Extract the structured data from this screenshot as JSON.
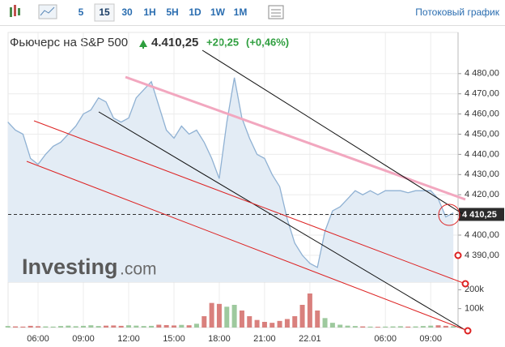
{
  "toolbar": {
    "intervals": [
      "5",
      "15",
      "30",
      "1H",
      "5H",
      "1D",
      "1W",
      "1M"
    ],
    "active_index": 1,
    "streaming_link": "Потоковый график"
  },
  "header": {
    "name": "Фьючерс на S&P 500",
    "price": "4.410,25",
    "change": "+20,25",
    "change_percent": "(+0,46%)"
  },
  "watermark": {
    "brand": "Investing",
    "suffix": ".com"
  },
  "chart_data": {
    "type": "area",
    "categories": [
      null,
      null,
      null,
      null,
      "06:00",
      null,
      null,
      null,
      null,
      null,
      "09:00",
      null,
      null,
      null,
      null,
      null,
      "12:00",
      null,
      null,
      null,
      null,
      null,
      "15:00",
      null,
      null,
      null,
      null,
      null,
      "18:00",
      null,
      null,
      null,
      null,
      null,
      "21:00",
      null,
      null,
      null,
      null,
      null,
      "22.01",
      null,
      null,
      null,
      null,
      null,
      null,
      null,
      null,
      null,
      "06:00",
      null,
      null,
      null,
      null,
      null,
      "09:00",
      null,
      null,
      null
    ],
    "series": [
      {
        "color": "#8fb1d3",
        "fill": "#e3ecf5",
        "values": [
          4456,
          4452,
          4450,
          4438,
          4435,
          4440,
          4444,
          4446,
          4450,
          4454,
          4460,
          4462,
          4468,
          4466,
          4458,
          4456,
          4458,
          4468,
          4472,
          4476,
          4464,
          4452,
          4448,
          4454,
          4450,
          4452,
          4446,
          4438,
          4428,
          4456,
          4478,
          4458,
          4448,
          4440,
          4438,
          4430,
          4424,
          4408,
          4396,
          4390,
          4386,
          4384,
          4402,
          4412,
          4414,
          4418,
          4422,
          4420,
          4422,
          4420,
          4422,
          4422,
          4422,
          4421,
          4422,
          4422,
          4422,
          4418,
          4409,
          4411
        ]
      },
      {
        "axis": "y2",
        "up_color": "#8dc08d",
        "down_color": "#d26a66",
        "values": [
          8000,
          6000,
          5000,
          9000,
          7000,
          6000,
          5000,
          8000,
          10000,
          7000,
          9000,
          12000,
          8000,
          10000,
          11000,
          9000,
          12000,
          10000,
          8000,
          9000,
          15000,
          13000,
          11000,
          14000,
          12000,
          20000,
          60000,
          130000,
          125000,
          110000,
          120000,
          90000,
          60000,
          40000,
          30000,
          25000,
          35000,
          45000,
          60000,
          120000,
          180000,
          90000,
          50000,
          25000,
          15000,
          10000,
          8000,
          6000,
          5000,
          4000,
          5000,
          6000,
          7000,
          5000,
          6000,
          8000,
          10000,
          12000,
          9000,
          7000
        ]
      }
    ],
    "ylim": [
      4376.7,
      4500.4
    ],
    "yticks": [
      {
        "value": 4390,
        "label": "4 390,00"
      },
      {
        "value": 4400,
        "label": "4 400,00"
      },
      {
        "value": 4410,
        "label": "4 410,00"
      },
      {
        "value": 4420,
        "label": "4 420,00"
      },
      {
        "value": 4430,
        "label": "4 430,00"
      },
      {
        "value": 4440,
        "label": "4 440,00"
      },
      {
        "value": 4450,
        "label": "4 450,00"
      },
      {
        "value": 4460,
        "label": "4 460,00"
      },
      {
        "value": 4470,
        "label": "4 470,00"
      },
      {
        "value": 4480,
        "label": "4 480,00"
      }
    ],
    "y2lim": [
      0,
      240000
    ],
    "y2ticks": [
      {
        "value": 100000,
        "label": "100k"
      },
      {
        "value": 200000,
        "label": "200k"
      }
    ],
    "last_value": {
      "value": 4410.25,
      "label": "4 410,25"
    },
    "grid": true
  }
}
